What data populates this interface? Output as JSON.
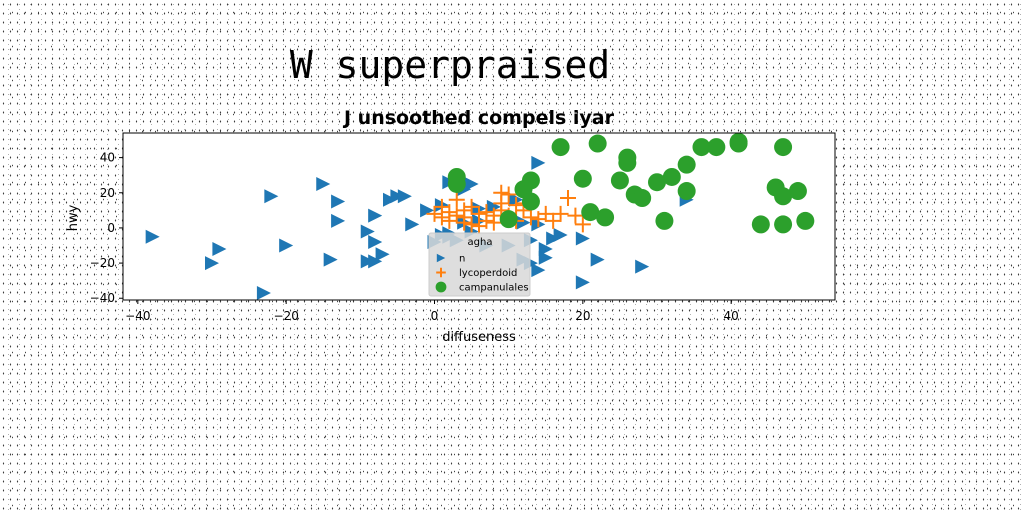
{
  "figure_title": "W superpraised",
  "chart_data": {
    "type": "scatter",
    "title": "J unsoothed compels iyar",
    "xlabel": "diffuseness",
    "ylabel": "hwy",
    "xlim": [
      -42,
      54
    ],
    "ylim": [
      -41,
      54
    ],
    "xticks": [
      -40,
      -20,
      0,
      20,
      40
    ],
    "yticks": [
      -40,
      -20,
      0,
      20,
      40
    ],
    "grid": false,
    "legend": {
      "placement": "lower-center",
      "title": "agha"
    },
    "series": [
      {
        "name": "n",
        "marker": "triangle-right",
        "color": "#1f77b4",
        "points": [
          [
            -38,
            -5
          ],
          [
            -30,
            -20
          ],
          [
            -29,
            -12
          ],
          [
            -23,
            -37
          ],
          [
            -22,
            18
          ],
          [
            -20,
            -10
          ],
          [
            -15,
            25
          ],
          [
            -14,
            -18
          ],
          [
            -13,
            15
          ],
          [
            -13,
            4
          ],
          [
            -9,
            -2
          ],
          [
            -9,
            -19
          ],
          [
            -8,
            -19
          ],
          [
            -8,
            -8
          ],
          [
            -8,
            7
          ],
          [
            -7,
            -15
          ],
          [
            -6,
            16
          ],
          [
            -5,
            18
          ],
          [
            -4,
            18
          ],
          [
            -3,
            2
          ],
          [
            -1,
            10
          ],
          [
            0,
            -8
          ],
          [
            1,
            -4
          ],
          [
            1,
            13
          ],
          [
            2,
            26
          ],
          [
            2,
            -3
          ],
          [
            2,
            -5
          ],
          [
            3,
            -7
          ],
          [
            4,
            22
          ],
          [
            4,
            3
          ],
          [
            5,
            25
          ],
          [
            5,
            -2
          ],
          [
            6,
            4
          ],
          [
            6,
            11
          ],
          [
            7,
            -10
          ],
          [
            8,
            12
          ],
          [
            10,
            -10
          ],
          [
            11,
            16
          ],
          [
            12,
            3
          ],
          [
            12,
            -18
          ],
          [
            13,
            -20
          ],
          [
            13,
            -7
          ],
          [
            14,
            37
          ],
          [
            14,
            -24
          ],
          [
            14,
            2
          ],
          [
            15,
            -12
          ],
          [
            15,
            -17
          ],
          [
            16,
            -6
          ],
          [
            17,
            -4
          ],
          [
            20,
            -6
          ],
          [
            20,
            -31
          ],
          [
            22,
            -18
          ],
          [
            28,
            -22
          ],
          [
            34,
            16
          ]
        ]
      },
      {
        "name": "lycoperdoid",
        "marker": "plus",
        "color": "#ff7f0e",
        "points": [
          [
            0,
            8
          ],
          [
            1,
            12
          ],
          [
            1,
            6
          ],
          [
            2,
            9
          ],
          [
            2,
            4
          ],
          [
            3,
            7
          ],
          [
            3,
            16
          ],
          [
            4,
            10
          ],
          [
            4,
            3
          ],
          [
            4,
            6
          ],
          [
            5,
            12
          ],
          [
            5,
            2
          ],
          [
            6,
            8
          ],
          [
            6,
            1
          ],
          [
            7,
            4
          ],
          [
            7,
            9
          ],
          [
            8,
            7
          ],
          [
            8,
            3
          ],
          [
            9,
            14
          ],
          [
            9,
            10
          ],
          [
            9,
            20
          ],
          [
            10,
            19
          ],
          [
            10,
            7
          ],
          [
            11,
            13
          ],
          [
            11,
            4
          ],
          [
            12,
            14
          ],
          [
            12,
            10
          ],
          [
            13,
            6
          ],
          [
            14,
            5
          ],
          [
            15,
            8
          ],
          [
            16,
            4
          ],
          [
            17,
            8
          ],
          [
            18,
            17
          ],
          [
            19,
            7
          ],
          [
            20,
            2
          ]
        ]
      },
      {
        "name": "campanulales",
        "marker": "circle",
        "color": "#2ca02c",
        "points": [
          [
            3,
            29
          ],
          [
            3,
            25
          ],
          [
            10,
            5
          ],
          [
            12,
            22
          ],
          [
            13,
            27
          ],
          [
            13,
            15
          ],
          [
            17,
            46
          ],
          [
            20,
            28
          ],
          [
            21,
            9
          ],
          [
            22,
            48
          ],
          [
            23,
            6
          ],
          [
            25,
            27
          ],
          [
            26,
            37
          ],
          [
            26,
            40
          ],
          [
            27,
            19
          ],
          [
            28,
            17
          ],
          [
            30,
            26
          ],
          [
            31,
            4
          ],
          [
            32,
            29
          ],
          [
            34,
            36
          ],
          [
            34,
            21
          ],
          [
            36,
            46
          ],
          [
            38,
            46
          ],
          [
            41,
            49
          ],
          [
            41,
            48
          ],
          [
            44,
            2
          ],
          [
            46,
            23
          ],
          [
            47,
            46
          ],
          [
            47,
            18
          ],
          [
            47,
            2
          ],
          [
            49,
            21
          ],
          [
            50,
            4
          ]
        ]
      }
    ]
  }
}
